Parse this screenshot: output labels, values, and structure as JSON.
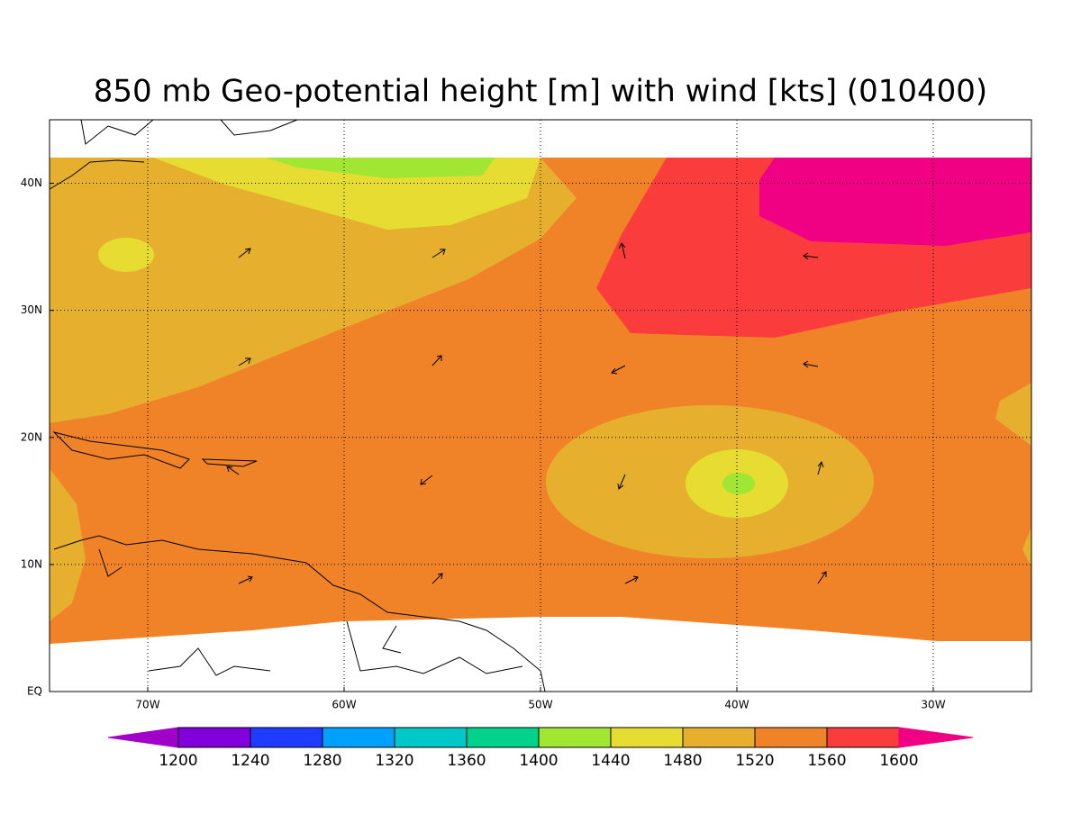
{
  "title": "850 mb Geo-potential height [m] with wind [kts] (010400)",
  "xlim": [
    -75,
    -25
  ],
  "ylim": [
    0,
    45
  ],
  "lon_ticks": [
    {
      "value": -70,
      "label": "70W"
    },
    {
      "value": -60,
      "label": "60W"
    },
    {
      "value": -50,
      "label": "50W"
    },
    {
      "value": -40,
      "label": "40W"
    },
    {
      "value": -30,
      "label": "30W"
    }
  ],
  "lat_ticks": [
    {
      "value": 0,
      "label": "EQ"
    },
    {
      "value": 10,
      "label": "10N"
    },
    {
      "value": 20,
      "label": "20N"
    },
    {
      "value": 30,
      "label": "30N"
    },
    {
      "value": 40,
      "label": "40N"
    }
  ],
  "colorbar": {
    "levels": [
      1200,
      1240,
      1280,
      1320,
      1360,
      1400,
      1440,
      1480,
      1520,
      1560,
      1600
    ],
    "colors": [
      "#a000c8",
      "#8200dc",
      "#1e3cff",
      "#00a0ff",
      "#00c8c8",
      "#00d28c",
      "#a0e632",
      "#e6dc32",
      "#e6af2d",
      "#f08228",
      "#fa3c3c",
      "#f00082"
    ]
  }
}
